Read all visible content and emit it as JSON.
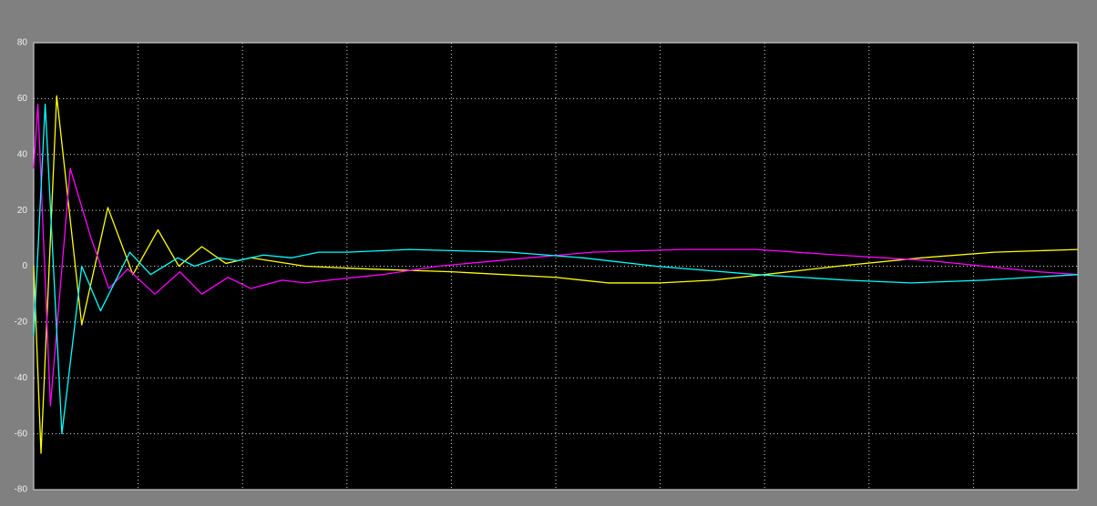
{
  "chart_data": {
    "type": "line",
    "xlim": [
      0,
      10
    ],
    "xticks": [
      1,
      2,
      3,
      4,
      5,
      6,
      7,
      8,
      9
    ],
    "ylim": [
      -80,
      80
    ],
    "yticks": [
      -80,
      -60,
      -40,
      -20,
      0,
      20,
      40,
      60,
      80
    ],
    "grid": true,
    "series": [
      {
        "color": "#ffff00",
        "x": [
          0,
          0.07,
          0.22,
          0.46,
          0.71,
          0.95,
          1.19,
          1.39,
          1.61,
          1.84,
          2.08,
          2.6,
          3.2,
          4.0,
          5.0,
          5.5,
          6.0,
          6.5,
          7.0,
          7.7,
          8.5,
          9.2,
          10
        ],
        "values": [
          0,
          -67,
          61,
          -21,
          21,
          -3,
          13,
          0,
          7,
          1,
          3,
          0,
          -1,
          -2,
          -4,
          -6,
          -6,
          -5,
          -3,
          0,
          3,
          5,
          6
        ]
      },
      {
        "color": "#ff00ff",
        "x": [
          0,
          0.04,
          0.16,
          0.35,
          0.55,
          0.72,
          0.9,
          1.16,
          1.4,
          1.61,
          1.86,
          2.08,
          2.38,
          2.6,
          2.82,
          3.34,
          3.87,
          4.74,
          5.35,
          6.22,
          6.92,
          7.7,
          8.58,
          9.1,
          9.62,
          10
        ],
        "values": [
          35,
          58,
          -50,
          35,
          10,
          -8,
          -1,
          -10,
          -2,
          -10,
          -4,
          -8,
          -5,
          -6,
          -5,
          -3,
          0,
          3,
          5,
          6,
          6,
          4,
          2,
          0,
          -2,
          -3
        ]
      },
      {
        "color": "#00ffff",
        "x": [
          0,
          0.11,
          0.27,
          0.46,
          0.64,
          0.92,
          1.12,
          1.38,
          1.54,
          1.77,
          1.95,
          2.2,
          2.47,
          2.73,
          2.99,
          3.6,
          4.56,
          5.26,
          5.96,
          6.92,
          7.79,
          8.4,
          9.1,
          10
        ],
        "values": [
          -25,
          58,
          -60,
          0,
          -16,
          5,
          -3,
          3,
          0,
          3,
          2,
          4,
          3,
          5,
          5,
          6,
          5,
          3,
          0,
          -3,
          -5,
          -6,
          -5,
          -3
        ]
      }
    ]
  }
}
